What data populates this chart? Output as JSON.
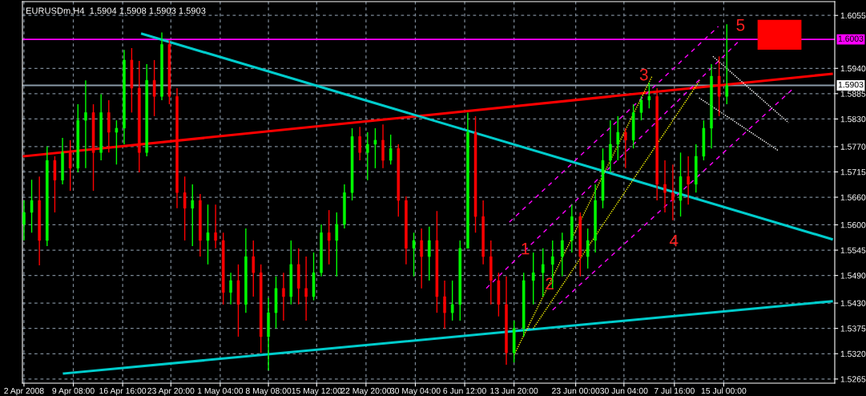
{
  "chart_data": {
    "type": "candlestick",
    "title": "EURUSDm,H4  1.5904 1.5908 1.5903 1.5903",
    "x": [
      "2008-04-02T00:00",
      "2008-04-03T03:30",
      "2008-04-04T07:00",
      "2008-04-05T10:30",
      "2008-04-06T14:00",
      "2008-04-07T17:30",
      "2008-04-08T21:00",
      "2008-04-10T00:30",
      "2008-04-11T04:00",
      "2008-04-12T07:30",
      "2008-04-13T11:00",
      "2008-04-14T14:30",
      "2008-04-15T18:00",
      "2008-04-16T21:23",
      "2008-04-18T00:15",
      "2008-04-19T03:08",
      "2008-04-20T06:00",
      "2008-04-21T08:53",
      "2008-04-22T11:45",
      "2008-04-23T14:38",
      "2008-04-24T18:00",
      "2008-04-25T21:30",
      "2008-04-27T01:00",
      "2008-04-28T04:30",
      "2008-04-29T08:00",
      "2008-04-30T11:30",
      "2008-05-01T14:45",
      "2008-05-02T17:38",
      "2008-05-03T20:30",
      "2008-05-04T23:23",
      "2008-05-06T02:15",
      "2008-05-07T05:08",
      "2008-05-08T08:00",
      "2008-05-09T10:53",
      "2008-05-10T13:45",
      "2008-05-11T16:38",
      "2008-05-12T19:30",
      "2008-05-13T22:23",
      "2008-05-15T01:15",
      "2008-05-16T04:30",
      "2008-05-17T08:00",
      "2008-05-18T11:30",
      "2008-05-19T15:00",
      "2008-05-20T18:30",
      "2008-05-21T22:00",
      "2008-05-23T01:30",
      "2008-05-24T05:00",
      "2008-05-25T08:30",
      "2008-05-26T12:00",
      "2008-05-27T15:30",
      "2008-05-28T19:00",
      "2008-05-29T22:30",
      "2008-05-31T02:00",
      "2008-06-01T05:30",
      "2008-06-02T09:00",
      "2008-06-03T12:30",
      "2008-06-04T16:00",
      "2008-06-05T19:30",
      "2008-06-06T23:00",
      "2008-06-08T02:30",
      "2008-06-09T06:00",
      "2008-06-10T09:30",
      "2008-06-11T13:00",
      "2008-06-12T16:30",
      "2008-06-13T20:00",
      "2008-06-15T06:23",
      "2008-06-16T16:45",
      "2008-06-18T03:08",
      "2008-06-19T13:30",
      "2008-06-20T23:53",
      "2008-06-22T10:15",
      "2008-06-23T16:08",
      "2008-06-24T19:00",
      "2008-06-25T21:53",
      "2008-06-27T00:45",
      "2008-06-28T03:38",
      "2008-06-29T06:30",
      "2008-06-30T09:38",
      "2008-07-01T13:45",
      "2008-07-02T17:53",
      "2008-07-03T22:00",
      "2008-07-05T02:08",
      "2008-07-06T06:15",
      "2008-07-07T10:23",
      "2008-07-08T14:00",
      "2008-07-09T17:30",
      "2008-07-10T21:00",
      "2008-07-12T00:30",
      "2008-07-13T04:00",
      "2008-07-14T07:30",
      "2008-07-15T11:00"
    ],
    "ohlc": [
      [
        1.5601,
        1.5653,
        1.5566,
        1.5627
      ],
      [
        1.5627,
        1.5698,
        1.5583,
        1.5653
      ],
      [
        1.5653,
        1.5705,
        1.5512,
        1.5566
      ],
      [
        1.5566,
        1.577,
        1.5554,
        1.574
      ],
      [
        1.574,
        1.5749,
        1.5627,
        1.5697
      ],
      [
        1.5697,
        1.5789,
        1.5688,
        1.5757
      ],
      [
        1.5757,
        1.5784,
        1.5674,
        1.5723
      ],
      [
        1.5723,
        1.5862,
        1.5714,
        1.5827
      ],
      [
        1.5827,
        1.5914,
        1.5723,
        1.5844
      ],
      [
        1.5844,
        1.5862,
        1.5674,
        1.5757
      ],
      [
        1.5757,
        1.5884,
        1.574,
        1.5844
      ],
      [
        1.5844,
        1.5871,
        1.5757,
        1.5801
      ],
      [
        1.5801,
        1.5827,
        1.5731,
        1.581
      ],
      [
        1.581,
        1.598,
        1.5775,
        1.5958
      ],
      [
        1.5958,
        1.5984,
        1.5844,
        1.5897
      ],
      [
        1.5897,
        1.5956,
        1.5714,
        1.5757
      ],
      [
        1.5757,
        1.5949,
        1.5749,
        1.5914
      ],
      [
        1.5914,
        1.5958,
        1.5836,
        1.5879
      ],
      [
        1.5879,
        1.6018,
        1.5871,
        1.5992
      ],
      [
        1.5992,
        1.6001,
        1.5862,
        1.5879
      ],
      [
        1.5879,
        1.5897,
        1.5636,
        1.567
      ],
      [
        1.567,
        1.5705,
        1.5566,
        1.5636
      ],
      [
        1.5636,
        1.5688,
        1.5554,
        1.5653
      ],
      [
        1.5653,
        1.5667,
        1.5531,
        1.5566
      ],
      [
        1.5566,
        1.5644,
        1.5514,
        1.5583
      ],
      [
        1.5583,
        1.5644,
        1.5549,
        1.5566
      ],
      [
        1.5566,
        1.5583,
        1.5427,
        1.5453
      ],
      [
        1.5453,
        1.5496,
        1.5427,
        1.5479
      ],
      [
        1.5479,
        1.5514,
        1.5357,
        1.5427
      ],
      [
        1.5427,
        1.5592,
        1.5409,
        1.5531
      ],
      [
        1.5531,
        1.5566,
        1.5444,
        1.5496
      ],
      [
        1.5496,
        1.5514,
        1.5322,
        1.5357
      ],
      [
        1.5357,
        1.5441,
        1.5284,
        1.5409
      ],
      [
        1.5409,
        1.5488,
        1.5375,
        1.5462
      ],
      [
        1.5462,
        1.5496,
        1.5392,
        1.5444
      ],
      [
        1.5444,
        1.5566,
        1.5427,
        1.5514
      ],
      [
        1.5514,
        1.5549,
        1.5427,
        1.5462
      ],
      [
        1.5462,
        1.5531,
        1.5392,
        1.5444
      ],
      [
        1.5444,
        1.554,
        1.5436,
        1.5496
      ],
      [
        1.5496,
        1.5601,
        1.5488,
        1.5583
      ],
      [
        1.5583,
        1.5632,
        1.5514,
        1.5566
      ],
      [
        1.5566,
        1.5627,
        1.5488,
        1.5601
      ],
      [
        1.5601,
        1.5688,
        1.5592,
        1.567
      ],
      [
        1.567,
        1.581,
        1.5653,
        1.5792
      ],
      [
        1.5792,
        1.5813,
        1.574,
        1.5757
      ],
      [
        1.5757,
        1.5801,
        1.5697,
        1.5775
      ],
      [
        1.5775,
        1.581,
        1.5723,
        1.5784
      ],
      [
        1.5784,
        1.5818,
        1.5723,
        1.574
      ],
      [
        1.574,
        1.5796,
        1.5731,
        1.5766
      ],
      [
        1.5766,
        1.5775,
        1.5618,
        1.5653
      ],
      [
        1.5653,
        1.5662,
        1.5514,
        1.5549
      ],
      [
        1.5549,
        1.5583,
        1.5488,
        1.5566
      ],
      [
        1.5566,
        1.5592,
        1.5462,
        1.5531
      ],
      [
        1.5531,
        1.5596,
        1.5479,
        1.5566
      ],
      [
        1.5566,
        1.563,
        1.5409,
        1.5444
      ],
      [
        1.5444,
        1.5479,
        1.5375,
        1.5409
      ],
      [
        1.5409,
        1.5479,
        1.5392,
        1.5427
      ],
      [
        1.5427,
        1.5566,
        1.5392,
        1.5549
      ],
      [
        1.5549,
        1.5844,
        1.5549,
        1.5801
      ],
      [
        1.5801,
        1.5836,
        1.5583,
        1.5618
      ],
      [
        1.5618,
        1.5653,
        1.5514,
        1.5531
      ],
      [
        1.5531,
        1.5566,
        1.5427,
        1.5479
      ],
      [
        1.5479,
        1.5496,
        1.5401,
        1.5427
      ],
      [
        1.5427,
        1.5488,
        1.5296,
        1.5322
      ],
      [
        1.5322,
        1.5392,
        1.5301,
        1.5375
      ],
      [
        1.5375,
        1.5496,
        1.5357,
        1.5479
      ],
      [
        1.5479,
        1.554,
        1.5427,
        1.5496
      ],
      [
        1.5496,
        1.5549,
        1.5444,
        1.5514
      ],
      [
        1.5514,
        1.5566,
        1.5462,
        1.5531
      ],
      [
        1.5531,
        1.5583,
        1.5488,
        1.5566
      ],
      [
        1.5566,
        1.5644,
        1.554,
        1.5618
      ],
      [
        1.5618,
        1.5627,
        1.5488,
        1.5531
      ],
      [
        1.5531,
        1.5592,
        1.5505,
        1.5566
      ],
      [
        1.5566,
        1.5688,
        1.554,
        1.5653
      ],
      [
        1.5653,
        1.5766,
        1.5636,
        1.574
      ],
      [
        1.574,
        1.5827,
        1.5714,
        1.5775
      ],
      [
        1.5775,
        1.5836,
        1.574,
        1.5801
      ],
      [
        1.5801,
        1.581,
        1.5723,
        1.5784
      ],
      [
        1.5784,
        1.5862,
        1.5766,
        1.5844
      ],
      [
        1.5844,
        1.5879,
        1.5827,
        1.5871
      ],
      [
        1.5871,
        1.5909,
        1.5853,
        1.5879
      ],
      [
        1.5879,
        1.5897,
        1.5653,
        1.5688
      ],
      [
        1.5688,
        1.574,
        1.5627,
        1.567
      ],
      [
        1.567,
        1.5731,
        1.561,
        1.5653
      ],
      [
        1.5653,
        1.5757,
        1.5618,
        1.5705
      ],
      [
        1.5705,
        1.5749,
        1.5644,
        1.5688
      ],
      [
        1.5688,
        1.5775,
        1.567,
        1.5749
      ],
      [
        1.5749,
        1.5827,
        1.574,
        1.581
      ],
      [
        1.581,
        1.5949,
        1.5766,
        1.5923
      ],
      [
        1.5923,
        1.5966,
        1.5836,
        1.5879
      ],
      [
        1.5879,
        1.6036,
        1.5862,
        1.5903
      ]
    ],
    "xlim": [
      "2008-04-01T18:30",
      "2008-07-31T12:00"
    ],
    "ylim": [
      1.5256,
      1.6085
    ],
    "xticks": [
      {
        "value": "2008-04-02T00:00",
        "label": "2 Apr 2008"
      },
      {
        "value": "2008-04-09T08:00",
        "label": "9 Apr 08:00"
      },
      {
        "value": "2008-04-16T16:00",
        "label": "16 Apr 16:00"
      },
      {
        "value": "2008-04-23T20:00",
        "label": "23 Apr 20:00"
      },
      {
        "value": "2008-05-01T04:00",
        "label": "1 May 04:00"
      },
      {
        "value": "2008-05-08T08:00",
        "label": "8 May 08:00"
      },
      {
        "value": "2008-05-15T12:00",
        "label": "15 May 12:00"
      },
      {
        "value": "2008-05-22T20:00",
        "label": "22 May 20:00"
      },
      {
        "value": "2008-05-30T04:00",
        "label": "30 May 04:00"
      },
      {
        "value": "2008-06-06T12:00",
        "label": "6 Jun 12:00"
      },
      {
        "value": "2008-06-13T20:00",
        "label": "13 Jun 20:00"
      },
      {
        "value": "2008-06-23T00:00",
        "label": "23 Jun 00:00"
      },
      {
        "value": "2008-06-30T04:00",
        "label": "30 Jun 04:00"
      },
      {
        "value": "2008-07-07T16:00",
        "label": "7 Jul 16:00"
      },
      {
        "value": "2008-07-15T00:00",
        "label": "15 Jul 00:00"
      }
    ],
    "yticks": [
      1.6055,
      {
        "value": 1.594,
        "label": "1.5940"
      },
      1.5885,
      {
        "value": 1.583,
        "label": "1.5830"
      },
      {
        "value": 1.577,
        "label": "1.5770"
      },
      1.5715,
      {
        "value": 1.566,
        "label": "1.5660"
      },
      {
        "value": 1.56,
        "label": "1.5600"
      },
      1.5545,
      {
        "value": 1.549,
        "label": "1.5490"
      },
      {
        "value": 1.543,
        "label": "1.5430"
      },
      1.5375,
      {
        "value": 1.532,
        "label": "1.5320"
      },
      1.5265
    ],
    "grid": true,
    "series": [
      {
        "type": "line",
        "color": "#ff0000",
        "line_style": "solid",
        "x": [
          "2008-04-02T00:00",
          "2008-07-31T01:00"
        ],
        "values": [
          1.5749,
          1.5928
        ]
      },
      {
        "type": "line",
        "color": "#00cccc",
        "line_style": "solid",
        "x": [
          "2008-04-19T13:53",
          "2008-07-31T01:00"
        ],
        "values": [
          1.6015,
          1.5569
        ]
      },
      {
        "type": "line",
        "color": "#00cccc",
        "line_style": "solid",
        "x": [
          "2008-04-07T23:00",
          "2008-07-31T01:00"
        ],
        "values": [
          1.5277,
          1.5434
        ]
      },
      {
        "type": "line",
        "color": "#ffff00",
        "line_style": "dotted",
        "x": [
          "2008-06-13T20:00",
          "2008-07-04T09:15"
        ],
        "values": [
          1.5317,
          1.5924
        ]
      },
      {
        "type": "line",
        "color": "#ffff00",
        "line_style": "dotted",
        "x": [
          "2008-06-16T16:45",
          "2008-07-11T10:45"
        ],
        "values": [
          1.5375,
          1.5914
        ]
      },
      {
        "type": "line",
        "color": "#ff00ff",
        "line_style": "dashed",
        "x": [
          "2008-06-13T03:30",
          "2008-07-14T04:45"
        ],
        "values": [
          1.5606,
          1.6031
        ]
      },
      {
        "type": "line",
        "color": "#ff00ff",
        "line_style": "dashed",
        "x": [
          "2008-06-09T17:00",
          "2008-07-17T04:15"
        ],
        "values": [
          1.5462,
          1.5998
        ]
      },
      {
        "type": "line",
        "color": "#ff00ff",
        "line_style": "dashed",
        "x": [
          "2008-06-19T13:30",
          "2008-07-25T02:00"
        ],
        "values": [
          1.5415,
          1.5893
        ]
      },
      {
        "type": "line",
        "color": "#ffffff",
        "line_style": "dotted",
        "x": [
          "2008-07-13T09:30",
          "2008-07-24T15:00"
        ],
        "values": [
          1.5966,
          1.5822
        ]
      },
      {
        "type": "line",
        "color": "#ffffff",
        "line_style": "dotted",
        "x": [
          "2008-07-11T08:00",
          "2008-07-23T03:15"
        ],
        "values": [
          1.5876,
          1.5761
        ]
      }
    ],
    "ref_lines": [
      {
        "axis": "y",
        "value": 1.6003,
        "label": "1.6003",
        "color": "#ff00ff"
      },
      {
        "axis": "y",
        "value": 1.5903,
        "label": "1.5903",
        "color": "#8a9aa8"
      }
    ],
    "annotations": [
      "1",
      {
        "text": "2",
        "x": "2008-06-19T03:00",
        "y": 1.5469
      },
      "3",
      "4",
      "5"
    ]
  }
}
